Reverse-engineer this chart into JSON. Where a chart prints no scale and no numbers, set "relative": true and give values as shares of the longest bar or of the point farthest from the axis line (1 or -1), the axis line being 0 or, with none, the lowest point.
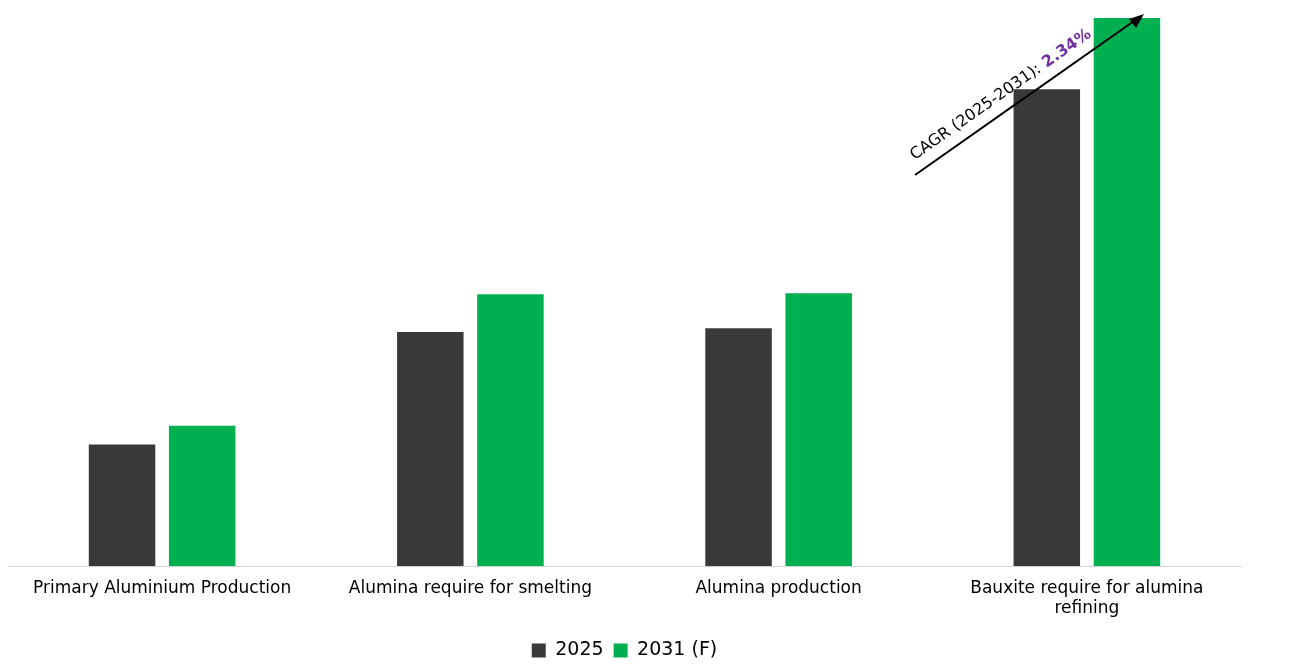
{
  "chart_data": {
    "type": "bar",
    "relative": true,
    "categories": [
      "Primary Aluminium Production",
      "Alumina require for smelting",
      "Alumina production",
      "Bauxite require for alumina refining"
    ],
    "series": [
      {
        "name": "2025",
        "color": "#3a3938",
        "values": [
          0.222,
          0.427,
          0.434,
          0.87
        ]
      },
      {
        "name": "2031 (F)",
        "color": "#00b050",
        "values": [
          0.256,
          0.496,
          0.498,
          1
        ]
      }
    ],
    "annotations": [
      "CAGR (2025-2031): 2.34%"
    ],
    "legend": "bottom",
    "grid": false
  }
}
